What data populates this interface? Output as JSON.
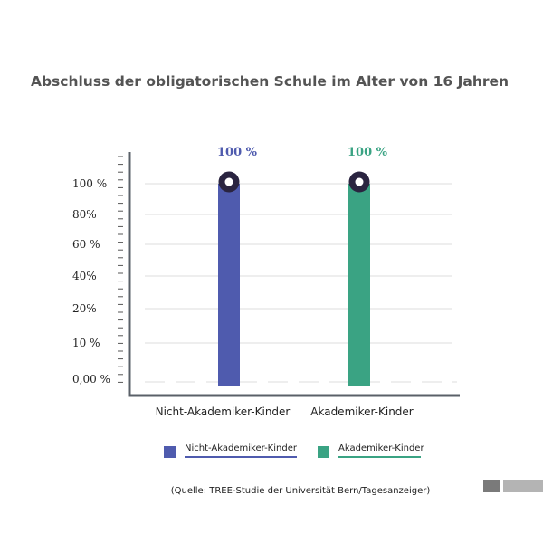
{
  "chart_data": {
    "type": "bar",
    "title": "Abschluss der obligatorischen Schule im Alter von 16 Jahren",
    "categories": [
      "Nicht-Akademiker-Kinder",
      "Akademiker-Kinder"
    ],
    "values": [
      100,
      100
    ],
    "value_labels": [
      "100 %",
      "100 %"
    ],
    "colors": [
      "#4f5bae",
      "#3aa383"
    ],
    "value_label_colors": [
      "#4f5bae",
      "#3aa383"
    ],
    "y_tick_labels": [
      "0,00 %",
      "10 %",
      "20%",
      "40%",
      "60 %",
      "80%",
      "100 %"
    ],
    "ylim": [
      0,
      100
    ],
    "grid": true,
    "legend": {
      "position": "bottom",
      "entries": [
        {
          "label": "Nicht-Akademiker-Kinder",
          "color": "#4f5bae"
        },
        {
          "label": "Akademiker-Kinder",
          "color": "#3aa383"
        }
      ]
    },
    "source": "(Quelle: TREE-Studie der Universität Bern/Tagesanzeiger)"
  },
  "colors": {
    "axis": "#5a6068",
    "grid": "#dddddd",
    "marker_ring": "#2a2440",
    "corner_dark": "#7a7a7a",
    "corner_light": "#b4b4b4"
  }
}
